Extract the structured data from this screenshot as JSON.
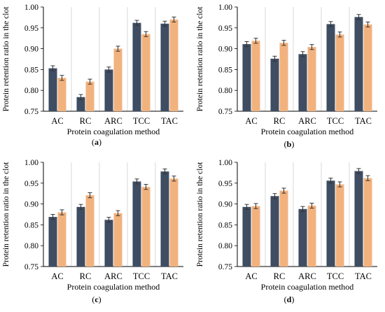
{
  "colors": {
    "series1": "#3f4d63",
    "series2": "#f2b27e",
    "grid": "#d9d9d9",
    "errorbar": "#333333"
  },
  "chart_data": [
    {
      "type": "bar",
      "panel_label": "(a)",
      "ylabel": "Protein retention ratio in the clot",
      "xlabel": "Protein coagulation method",
      "categories": [
        "AC",
        "RC",
        "ARC",
        "TCC",
        "TAC"
      ],
      "ylim": [
        0.75,
        1.0
      ],
      "yticks": [
        "0.75",
        "0.80",
        "0.85",
        "0.90",
        "0.95",
        "1.00"
      ],
      "grid": "vertical category separators",
      "series": [
        {
          "values": [
            0.853,
            0.784,
            0.85,
            0.962,
            0.96
          ],
          "errors": [
            0.006,
            0.006,
            0.006,
            0.006,
            0.006
          ]
        },
        {
          "values": [
            0.83,
            0.821,
            0.9,
            0.935,
            0.97
          ],
          "errors": [
            0.006,
            0.006,
            0.006,
            0.006,
            0.006
          ]
        }
      ]
    },
    {
      "type": "bar",
      "panel_label": "(b)",
      "ylabel": "Protein retention ratio in the clot",
      "xlabel": "Protein coagulation method",
      "categories": [
        "AC",
        "RC",
        "ARC",
        "TCC",
        "TAC"
      ],
      "ylim": [
        0.75,
        1.0
      ],
      "yticks": [
        "0.75",
        "0.80",
        "0.85",
        "0.90",
        "0.95",
        "1.00"
      ],
      "grid": "vertical category separators",
      "series": [
        {
          "values": [
            0.911,
            0.876,
            0.887,
            0.959,
            0.976
          ],
          "errors": [
            0.006,
            0.006,
            0.006,
            0.006,
            0.006
          ]
        },
        {
          "values": [
            0.919,
            0.914,
            0.904,
            0.934,
            0.958
          ],
          "errors": [
            0.006,
            0.006,
            0.006,
            0.006,
            0.006
          ]
        }
      ]
    },
    {
      "type": "bar",
      "panel_label": "(c)",
      "ylabel": "Protein retention ratio in the clot",
      "xlabel": "Protein coagulation method",
      "categories": [
        "AC",
        "RC",
        "ARC",
        "TCC",
        "TAC"
      ],
      "ylim": [
        0.75,
        1.0
      ],
      "yticks": [
        "0.75",
        "0.80",
        "0.85",
        "0.90",
        "0.95",
        "1.00"
      ],
      "grid": "vertical category separators",
      "series": [
        {
          "values": [
            0.869,
            0.893,
            0.862,
            0.954,
            0.978
          ],
          "errors": [
            0.006,
            0.006,
            0.006,
            0.006,
            0.006
          ]
        },
        {
          "values": [
            0.88,
            0.921,
            0.878,
            0.941,
            0.961
          ],
          "errors": [
            0.006,
            0.006,
            0.006,
            0.006,
            0.006
          ]
        }
      ]
    },
    {
      "type": "bar",
      "panel_label": "(d)",
      "ylabel": "Protein retention ratio in the clot",
      "xlabel": "Protein coagulation method",
      "categories": [
        "AC",
        "RC",
        "ARC",
        "TCC",
        "TAC"
      ],
      "ylim": [
        0.75,
        1.0
      ],
      "yticks": [
        "0.75",
        "0.80",
        "0.85",
        "0.90",
        "0.95",
        "1.00"
      ],
      "grid": "vertical category separators",
      "series": [
        {
          "values": [
            0.893,
            0.919,
            0.888,
            0.956,
            0.979
          ],
          "errors": [
            0.006,
            0.006,
            0.006,
            0.006,
            0.006
          ]
        },
        {
          "values": [
            0.895,
            0.932,
            0.896,
            0.947,
            0.962
          ],
          "errors": [
            0.006,
            0.006,
            0.006,
            0.006,
            0.006
          ]
        }
      ]
    }
  ]
}
